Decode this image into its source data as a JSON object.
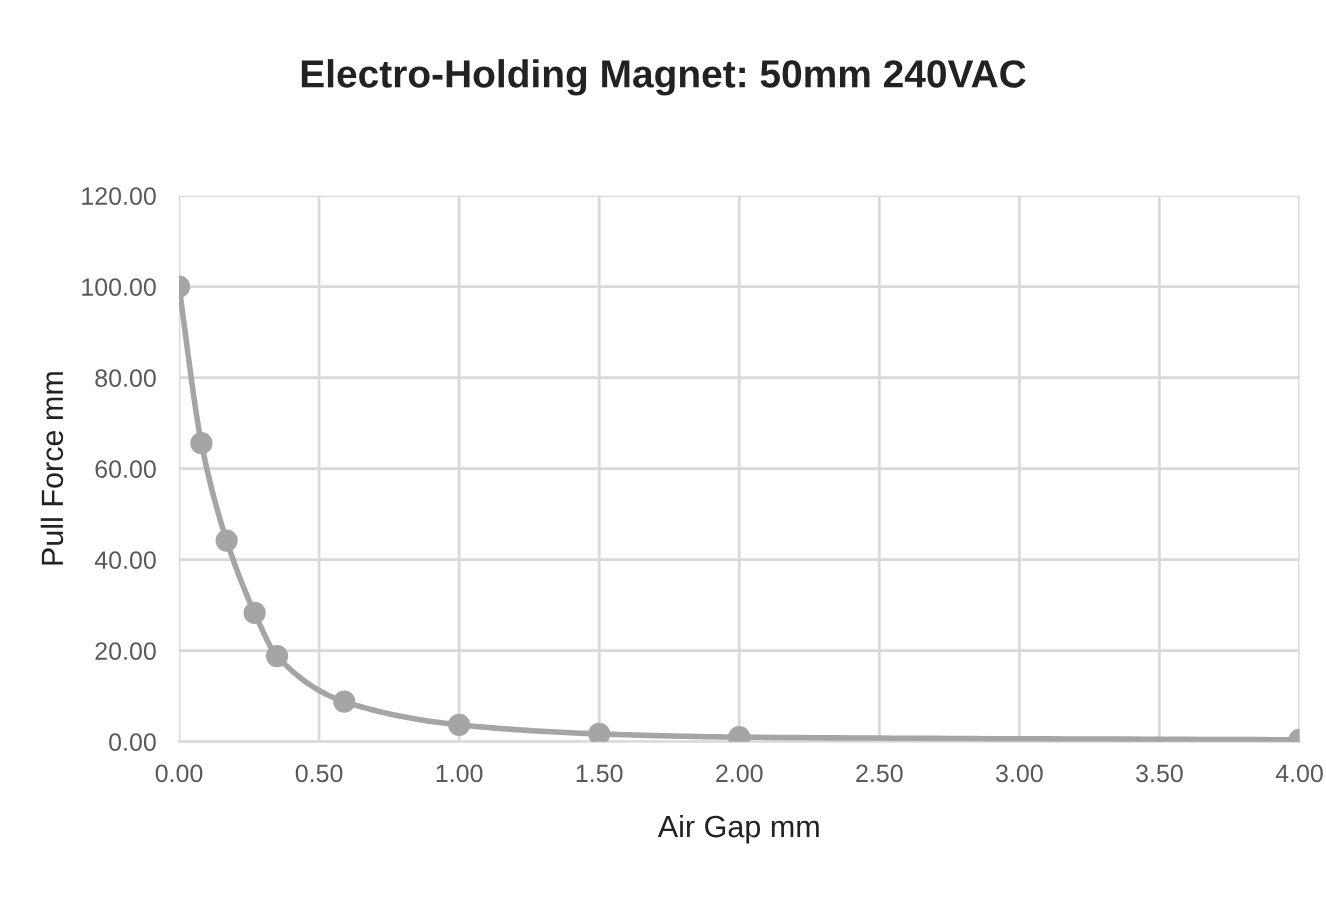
{
  "chart_data": {
    "type": "line",
    "title": "Electro-Holding Magnet: 50mm 240VAC",
    "xlabel": "Air Gap mm",
    "ylabel": "Pull Force mm",
    "series": [
      {
        "color": "#a5a5a5",
        "x": [
          0,
          0.08,
          0.17,
          0.27,
          0.35,
          0.59,
          1.0,
          1.5,
          2.0,
          4.0
        ],
        "values": [
          100,
          65.6,
          44.2,
          28.3,
          18.8,
          8.8,
          3.7,
          1.7,
          1.0,
          0.4
        ]
      }
    ],
    "xlim": [
      0,
      4
    ],
    "xticks": [
      {
        "value": 0,
        "label": "0.00"
      },
      {
        "value": 0.5,
        "label": "0.50"
      },
      {
        "value": 1,
        "label": "1.00"
      },
      {
        "value": 1.5,
        "label": "1.50"
      },
      {
        "value": 2,
        "label": "2.00"
      },
      {
        "value": 2.5,
        "label": "2.50"
      },
      {
        "value": 3,
        "label": "3.00"
      },
      {
        "value": 3.5,
        "label": "3.50"
      },
      {
        "value": 4,
        "label": "4.00"
      }
    ],
    "ylim": [
      0,
      120
    ],
    "yticks": [
      {
        "value": 0,
        "label": "0.00"
      },
      {
        "value": 20,
        "label": "20.00"
      },
      {
        "value": 40,
        "label": "40.00"
      },
      {
        "value": 60,
        "label": "60.00"
      },
      {
        "value": 80,
        "label": "80.00"
      },
      {
        "value": 100,
        "label": "100.00"
      },
      {
        "value": 120,
        "label": "120.00"
      }
    ],
    "grid": true,
    "marker": "circle",
    "line_style": "solid",
    "legend": false
  }
}
